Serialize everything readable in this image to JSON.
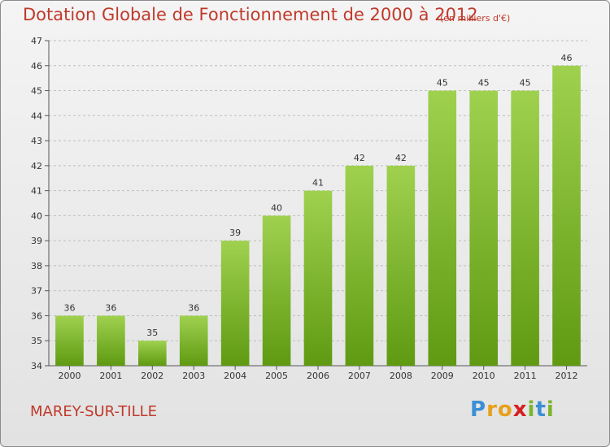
{
  "title": "Dotation Globale de Fonctionnement de 2000 à 2012",
  "unit_note": "(en milliers d'€)",
  "commune": "MAREY-SUR-TILLE",
  "logo": {
    "letters": [
      "P",
      "r",
      "o",
      "x",
      "i",
      "t",
      "i"
    ],
    "colors": [
      "#3a8fd6",
      "#e8a01c",
      "#e8a01c",
      "#d42020",
      "#7ab52f",
      "#3a8fd6",
      "#7ab52f"
    ]
  },
  "chart_data": {
    "type": "bar",
    "categories": [
      "2000",
      "2001",
      "2002",
      "2003",
      "2004",
      "2005",
      "2006",
      "2007",
      "2008",
      "2009",
      "2010",
      "2011",
      "2012"
    ],
    "values": [
      36,
      36,
      35,
      36,
      39,
      40,
      41,
      42,
      42,
      45,
      45,
      45,
      46
    ],
    "ylim": [
      34,
      47
    ],
    "yticks": [
      34,
      35,
      36,
      37,
      38,
      39,
      40,
      41,
      42,
      43,
      44,
      45,
      46,
      47
    ],
    "bar_color_top": "#9fd14f",
    "bar_color_bottom": "#5f9a12",
    "grid": "horizontal dashed",
    "title": "Dotation Globale de Fonctionnement de 2000 à 2012"
  }
}
